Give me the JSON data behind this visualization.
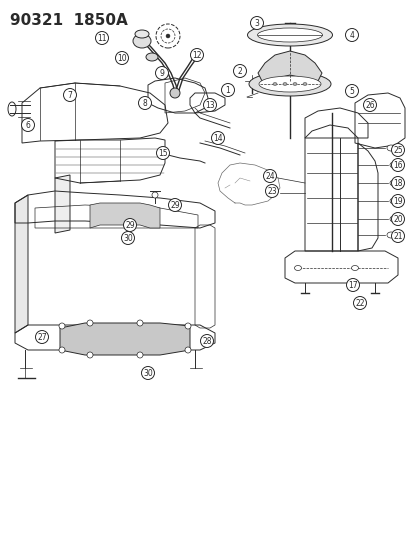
{
  "title": "90321  1850A",
  "bg_color": "#ffffff",
  "line_color": "#2a2a2a",
  "callout_r": 0.016,
  "callout_fontsize": 5.8,
  "figsize": [
    4.14,
    5.33
  ],
  "dpi": 100
}
